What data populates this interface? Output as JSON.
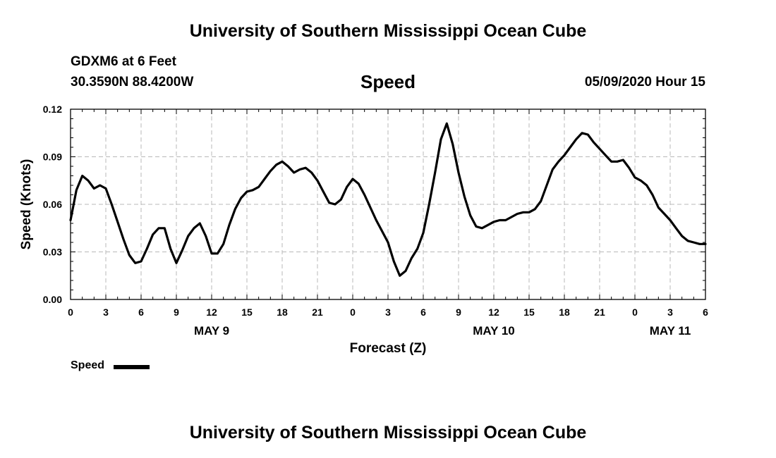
{
  "header": {
    "title": "University of Southern Mississippi Ocean Cube",
    "station": "GDXM6 at 6 Feet",
    "coordinates": "30.3590N 88.4200W",
    "variable": "Speed",
    "datetime": "05/09/2020 Hour 15"
  },
  "footer": {
    "title": "University of Southern Mississippi Ocean Cube"
  },
  "legend": {
    "label": "Speed"
  },
  "chart_data": {
    "type": "line",
    "title": "Speed",
    "xlabel": "Forecast (Z)",
    "ylabel": "Speed (Knots)",
    "ylim": [
      0,
      0.12
    ],
    "xlim": [
      0,
      54
    ],
    "x_unit": "hours since May 9 00Z",
    "yticks": [
      "0.00",
      "0.03",
      "0.06",
      "0.09",
      "0.12"
    ],
    "xticks": [
      "0",
      "3",
      "6",
      "9",
      "12",
      "15",
      "18",
      "21",
      "0",
      "3",
      "6",
      "9",
      "12",
      "15",
      "18",
      "21",
      "0",
      "3",
      "6"
    ],
    "day_labels": [
      {
        "label": "MAY 9",
        "hour": 12
      },
      {
        "label": "MAY 10",
        "hour": 36
      },
      {
        "label": "MAY 11",
        "hour": 51
      }
    ],
    "grid": true,
    "legend_position": "bottom-left",
    "series": [
      {
        "name": "Speed",
        "color": "#000000",
        "x": [
          0,
          0.5,
          1,
          1.5,
          2,
          2.5,
          3,
          3.5,
          4,
          4.5,
          5,
          5.5,
          6,
          6.5,
          7,
          7.5,
          8,
          8.5,
          9,
          9.5,
          10,
          10.5,
          11,
          11.5,
          12,
          12.5,
          13,
          13.5,
          14,
          14.5,
          15,
          15.5,
          16,
          16.5,
          17,
          17.5,
          18,
          18.5,
          19,
          19.5,
          20,
          20.5,
          21,
          21.5,
          22,
          22.5,
          23,
          23.5,
          24,
          24.5,
          25,
          25.5,
          26,
          26.5,
          27,
          27.5,
          28,
          28.5,
          29,
          29.5,
          30,
          30.5,
          31,
          31.5,
          32,
          32.5,
          33,
          33.5,
          34,
          34.5,
          35,
          35.5,
          36,
          36.5,
          37,
          37.5,
          38,
          38.5,
          39,
          39.5,
          40,
          40.5,
          41,
          41.5,
          42,
          42.5,
          43,
          43.5,
          44,
          44.5,
          45,
          45.5,
          46,
          46.5,
          47,
          47.5,
          48,
          48.5,
          49,
          49.5,
          50,
          50.5,
          51,
          51.5,
          52,
          52.5,
          53,
          53.5,
          54
        ],
        "values": [
          0.05,
          0.069,
          0.078,
          0.075,
          0.07,
          0.072,
          0.07,
          0.06,
          0.049,
          0.038,
          0.028,
          0.023,
          0.024,
          0.032,
          0.041,
          0.045,
          0.045,
          0.032,
          0.023,
          0.031,
          0.04,
          0.045,
          0.048,
          0.04,
          0.029,
          0.029,
          0.035,
          0.047,
          0.057,
          0.064,
          0.068,
          0.069,
          0.071,
          0.076,
          0.081,
          0.085,
          0.087,
          0.084,
          0.08,
          0.082,
          0.083,
          0.08,
          0.075,
          0.068,
          0.061,
          0.06,
          0.063,
          0.071,
          0.076,
          0.073,
          0.066,
          0.058,
          0.05,
          0.043,
          0.036,
          0.024,
          0.015,
          0.018,
          0.026,
          0.032,
          0.042,
          0.06,
          0.08,
          0.101,
          0.111,
          0.098,
          0.08,
          0.065,
          0.053,
          0.046,
          0.045,
          0.047,
          0.049,
          0.05,
          0.05,
          0.052,
          0.054,
          0.055,
          0.055,
          0.057,
          0.062,
          0.072,
          0.082,
          0.087,
          0.091,
          0.096,
          0.101,
          0.105,
          0.104,
          0.099,
          0.095,
          0.091,
          0.087,
          0.087,
          0.088,
          0.083,
          0.077,
          0.075,
          0.072,
          0.066,
          0.058,
          0.054,
          0.05,
          0.045,
          0.04,
          0.037,
          0.036,
          0.035,
          0.035
        ]
      }
    ]
  }
}
